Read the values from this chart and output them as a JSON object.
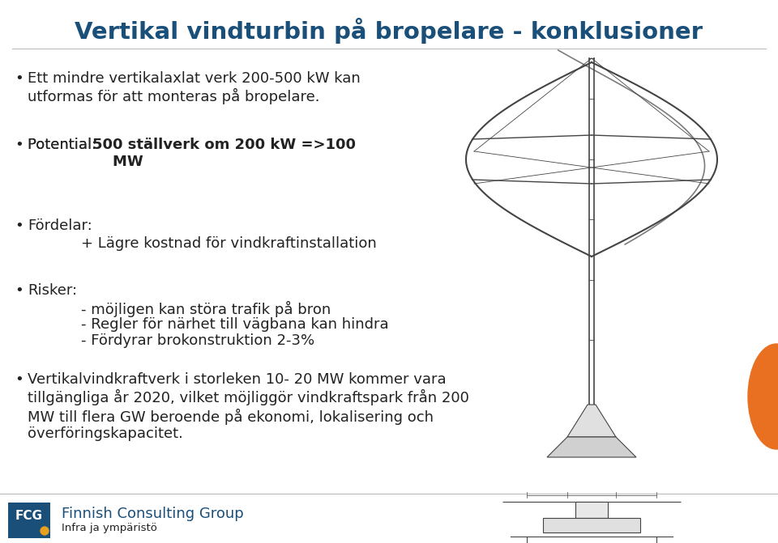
{
  "title": "Vertikal vindturbin på bropelare - konklusioner",
  "title_color": "#1a4f7a",
  "title_fontsize": 21,
  "background_color": "#ffffff",
  "bullet_color": "#222222",
  "text_color": "#222222",
  "bullet1": "Ett mindre vertikalaxlat verk 200-500 kW kan\nutformas för att monteras på bropelare.",
  "bullet2_prefix": "Potential: ",
  "bullet2_bold": "500 ställverk om 200 kW =>100\n    MW",
  "bullet3_header": "Fördelar:",
  "bullet3_sub": "+ Lägre kostnad för vindkraftinstallation",
  "bullet4_header": "Risker:",
  "bullet4_sub1": "- möjligen kan störa trafik på bron",
  "bullet4_sub2": "- Regler för närhet till vägbana kan hindra",
  "bullet4_sub3": "- Fördyrar brokonstruktion 2-3%",
  "bullet5": "Vertikalvindkraftverk i storleken 10- 20 MW kommer vara\ntillgängliga år 2020, vilket möjliggör vindkraftspark från 200\nMW till flera GW beroende på ekonomi, lokalisering och\növerföringskapacitet.",
  "footer_company": "Finnish Consulting Group",
  "footer_sub": "Infra ja ympäristö",
  "fcg_box_color": "#1a4f7a",
  "fcg_dot_color": "#e8a020",
  "orange_ellipse_color": "#e87020",
  "divider_color": "#bbbbbb",
  "title_underline_color": "#bbbbbb",
  "turbine_color": "#444444"
}
